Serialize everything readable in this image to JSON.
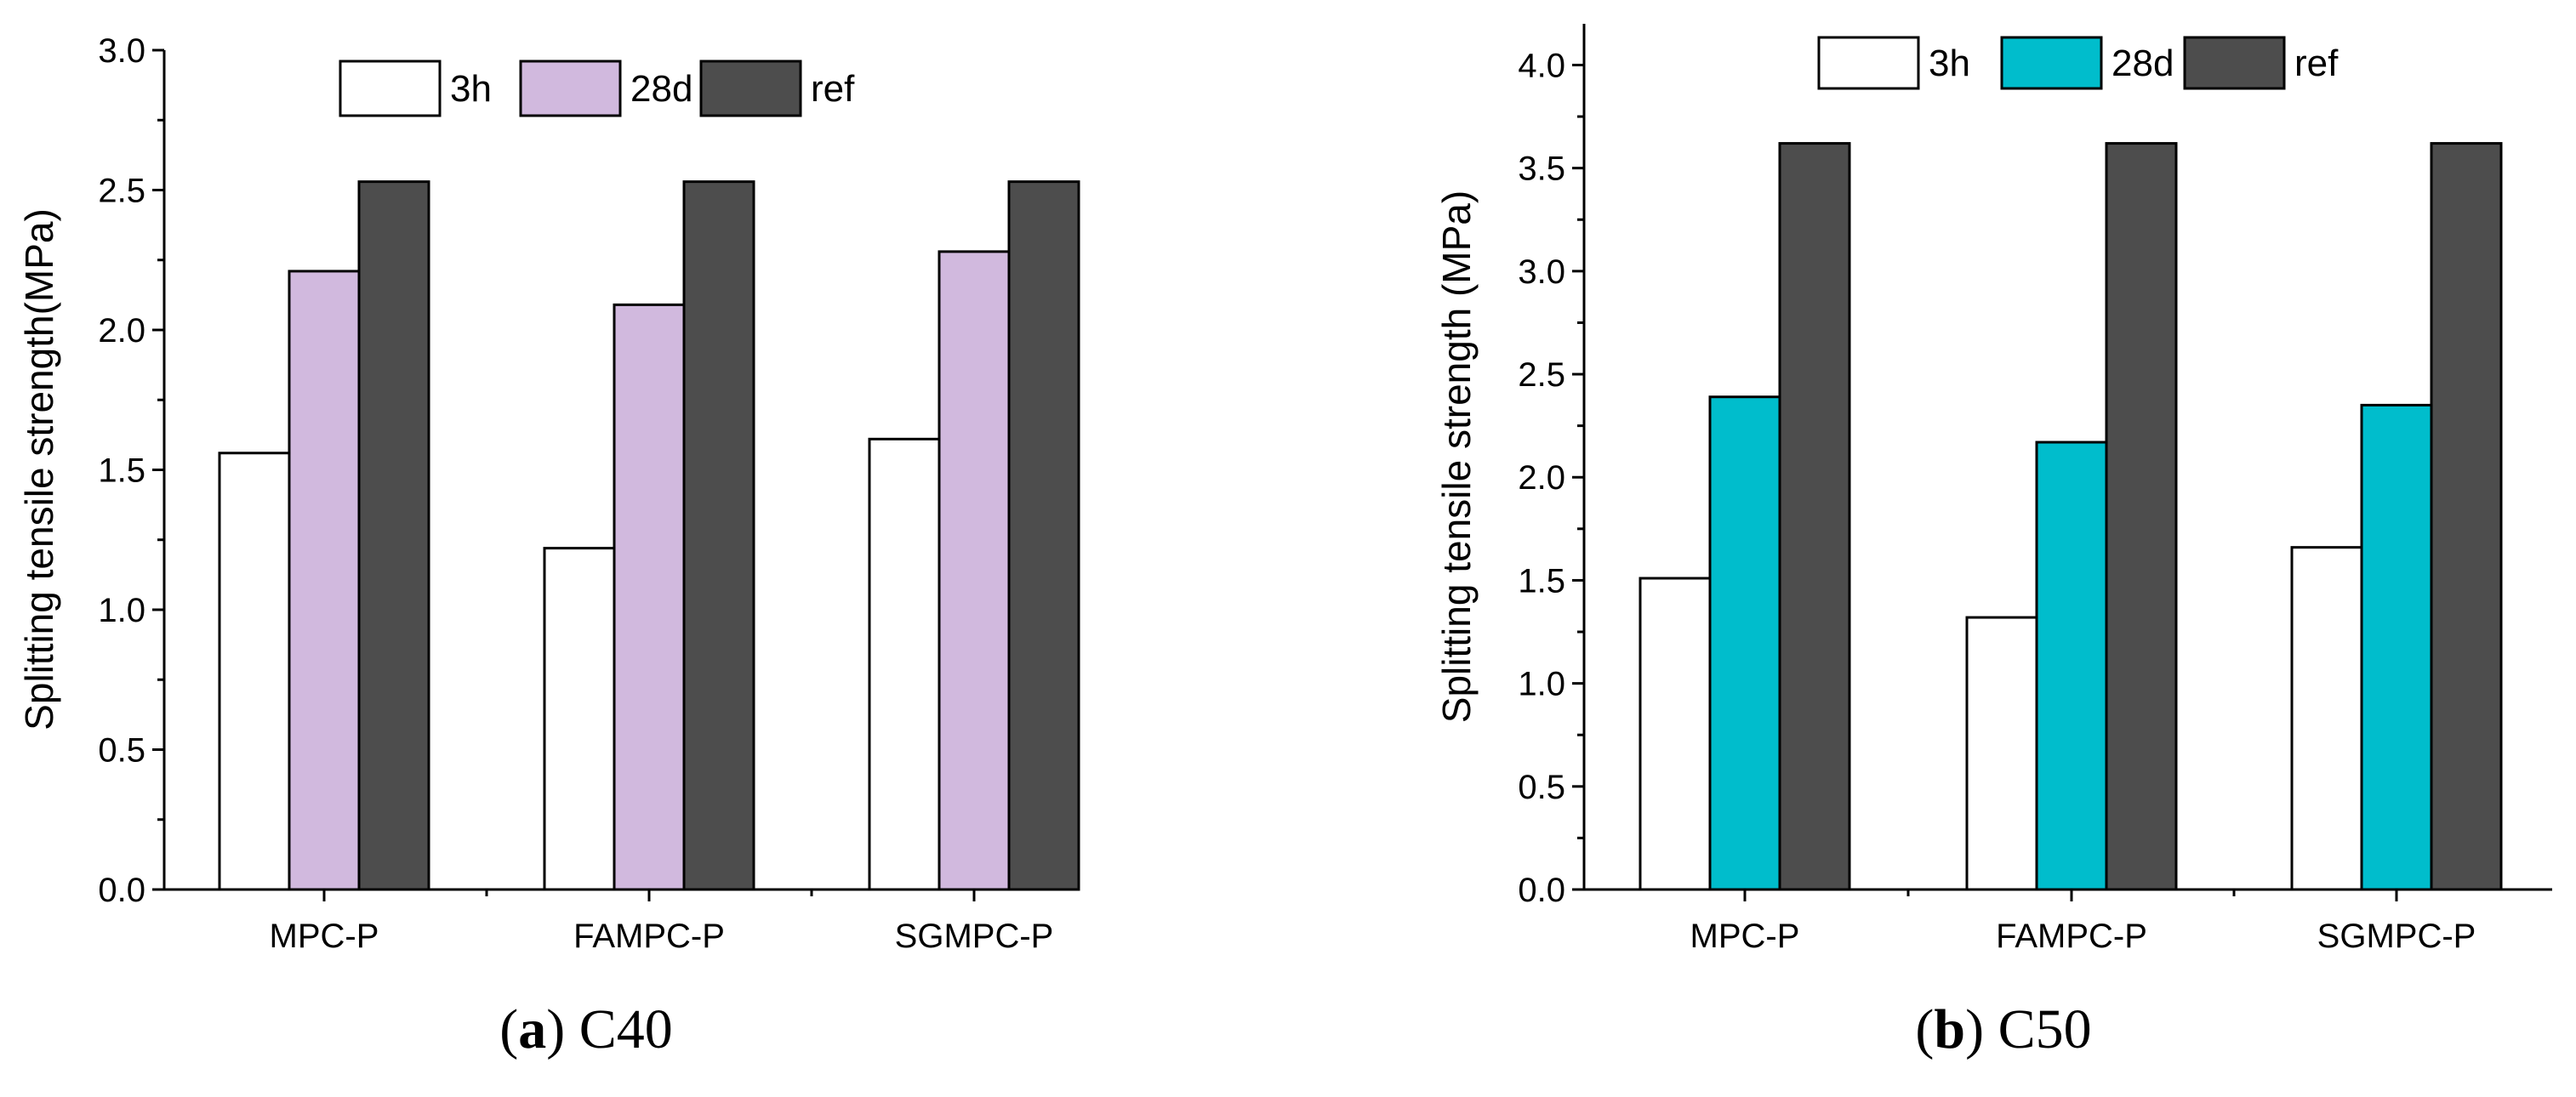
{
  "chart_data": [
    {
      "type": "bar",
      "title": "",
      "caption": {
        "letter": "a",
        "text": "C40"
      },
      "xlabel": "",
      "ylabel": "Splitting tensile strength(MPa)",
      "ylim": [
        0,
        3.0
      ],
      "yticks": [
        "0.0",
        "0.5",
        "1.0",
        "1.5",
        "2.0",
        "2.5",
        "3.0"
      ],
      "categories": [
        "MPC-P",
        "FAMPC-P",
        "SGMPC-P"
      ],
      "legend_position": "top-center",
      "series": [
        {
          "name": "3h",
          "color": "#ffffff",
          "values": [
            1.56,
            1.22,
            1.61
          ]
        },
        {
          "name": "28d",
          "color": "#d1b9de",
          "values": [
            2.21,
            2.09,
            2.28
          ]
        },
        {
          "name": "ref",
          "color": "#4d4d4d",
          "values": [
            2.53,
            2.53,
            2.53
          ]
        }
      ]
    },
    {
      "type": "bar",
      "title": "",
      "caption": {
        "letter": "b",
        "text": "C50"
      },
      "xlabel": "",
      "ylabel": "Splitting tensile strength (MPa)",
      "ylim": [
        0,
        4.2
      ],
      "yticks": [
        "0.0",
        "0.5",
        "1.0",
        "1.5",
        "2.0",
        "2.5",
        "3.0",
        "3.5",
        "4.0"
      ],
      "categories": [
        "MPC-P",
        "FAMPC-P",
        "SGMPC-P"
      ],
      "legend_position": "top-center",
      "series": [
        {
          "name": "3h",
          "color": "#ffffff",
          "values": [
            1.51,
            1.32,
            1.66
          ]
        },
        {
          "name": "28d",
          "color": "#00bdcc",
          "values": [
            2.39,
            2.17,
            2.35
          ]
        },
        {
          "name": "ref",
          "color": "#4d4d4d",
          "values": [
            3.62,
            3.62,
            3.62
          ]
        }
      ]
    }
  ]
}
